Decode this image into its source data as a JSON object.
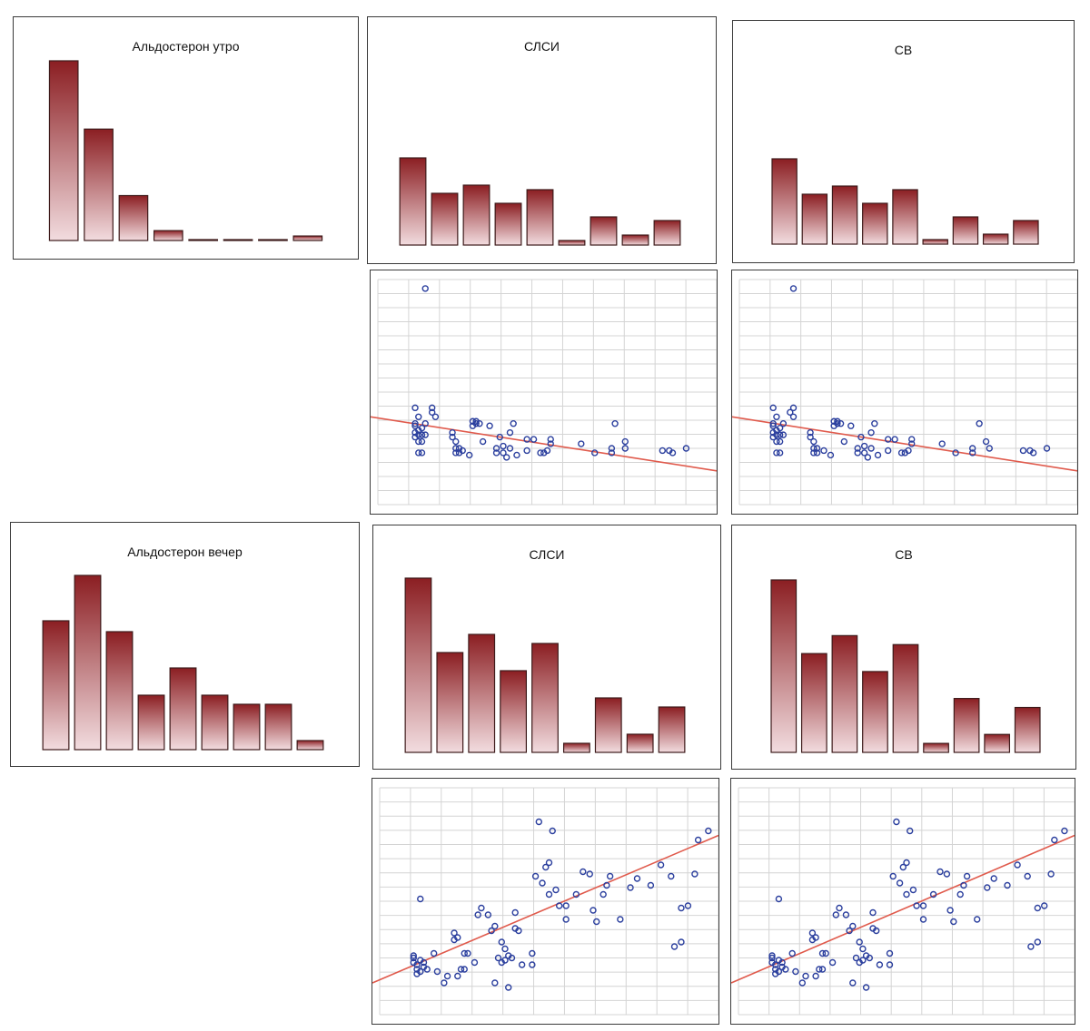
{
  "chart_data": [
    {
      "id": "hist-aldo-morning",
      "type": "bar",
      "title": "Альдостерон утро",
      "values": [
        20,
        12.4,
        5,
        1.1,
        0.1,
        0.1,
        0.1,
        0.5
      ],
      "ylim": [
        0,
        20
      ]
    },
    {
      "id": "hist-slsi-1",
      "type": "bar",
      "title": "СЛСИ",
      "values": [
        9.6,
        5.7,
        6.6,
        4.6,
        6.1,
        0.5,
        3.1,
        1.1,
        2.7
      ],
      "ylim": [
        0,
        9.6
      ]
    },
    {
      "id": "hist-sv-1",
      "type": "bar",
      "title": "СВ",
      "values": [
        9.4,
        5.5,
        6.4,
        4.5,
        6.0,
        0.5,
        3.0,
        1.1,
        2.6
      ],
      "ylim": [
        0,
        9.4
      ]
    },
    {
      "id": "scatter-slsi-1",
      "type": "scatter",
      "xlim": [
        0,
        100
      ],
      "ylim": [
        0,
        100
      ],
      "points": [
        [
          11,
          43
        ],
        [
          11,
          36
        ],
        [
          11,
          35
        ],
        [
          11,
          32
        ],
        [
          11,
          30
        ],
        [
          12,
          33
        ],
        [
          12,
          31
        ],
        [
          12,
          28
        ],
        [
          13,
          31
        ],
        [
          13,
          28
        ],
        [
          14,
          31
        ],
        [
          13,
          34
        ],
        [
          14,
          36
        ],
        [
          16,
          41
        ],
        [
          12,
          23
        ],
        [
          13,
          23
        ],
        [
          14,
          96
        ],
        [
          12,
          39
        ],
        [
          16,
          43
        ],
        [
          17,
          39
        ],
        [
          22,
          32
        ],
        [
          22,
          30
        ],
        [
          23,
          28
        ],
        [
          23,
          25
        ],
        [
          23,
          23
        ],
        [
          24,
          23
        ],
        [
          24,
          25
        ],
        [
          25,
          24
        ],
        [
          27,
          22
        ],
        [
          28,
          35
        ],
        [
          28,
          37
        ],
        [
          29,
          36
        ],
        [
          29,
          37
        ],
        [
          30,
          36
        ],
        [
          31,
          28
        ],
        [
          33,
          35
        ],
        [
          35,
          23
        ],
        [
          35,
          25
        ],
        [
          36,
          30
        ],
        [
          37,
          23
        ],
        [
          37,
          26
        ],
        [
          38,
          21
        ],
        [
          39,
          32
        ],
        [
          39,
          25
        ],
        [
          40,
          36
        ],
        [
          41,
          22
        ],
        [
          44,
          29
        ],
        [
          44,
          24
        ],
        [
          46,
          29
        ],
        [
          48,
          23
        ],
        [
          49,
          23
        ],
        [
          50,
          24
        ],
        [
          51,
          27
        ],
        [
          51,
          29
        ],
        [
          60,
          27
        ],
        [
          64,
          23
        ],
        [
          69,
          23
        ],
        [
          69,
          25
        ],
        [
          70,
          36
        ],
        [
          73,
          28
        ],
        [
          73,
          25
        ],
        [
          84,
          24
        ],
        [
          86,
          24
        ],
        [
          87,
          23
        ],
        [
          91,
          25
        ]
      ],
      "trendline": [
        [
          0,
          39
        ],
        [
          100,
          15
        ]
      ]
    },
    {
      "id": "scatter-sv-1",
      "type": "scatter",
      "xlim": [
        0,
        100
      ],
      "ylim": [
        0,
        100
      ],
      "points": [
        [
          10,
          43
        ],
        [
          10,
          36
        ],
        [
          10,
          35
        ],
        [
          10,
          32
        ],
        [
          10,
          30
        ],
        [
          11,
          33
        ],
        [
          11,
          31
        ],
        [
          11,
          28
        ],
        [
          12,
          31
        ],
        [
          12,
          28
        ],
        [
          13,
          31
        ],
        [
          12,
          34
        ],
        [
          13,
          36
        ],
        [
          15,
          41
        ],
        [
          11,
          23
        ],
        [
          12,
          23
        ],
        [
          16,
          96
        ],
        [
          11,
          39
        ],
        [
          16,
          43
        ],
        [
          16,
          39
        ],
        [
          21,
          32
        ],
        [
          21,
          30
        ],
        [
          22,
          28
        ],
        [
          22,
          25
        ],
        [
          22,
          23
        ],
        [
          23,
          23
        ],
        [
          23,
          25
        ],
        [
          25,
          24
        ],
        [
          27,
          22
        ],
        [
          28,
          35
        ],
        [
          28,
          37
        ],
        [
          29,
          36
        ],
        [
          29,
          37
        ],
        [
          30,
          36
        ],
        [
          31,
          28
        ],
        [
          33,
          35
        ],
        [
          35,
          23
        ],
        [
          35,
          25
        ],
        [
          36,
          30
        ],
        [
          37,
          23
        ],
        [
          37,
          26
        ],
        [
          38,
          21
        ],
        [
          39,
          32
        ],
        [
          39,
          25
        ],
        [
          40,
          36
        ],
        [
          41,
          22
        ],
        [
          44,
          29
        ],
        [
          44,
          24
        ],
        [
          46,
          29
        ],
        [
          48,
          23
        ],
        [
          49,
          23
        ],
        [
          50,
          24
        ],
        [
          51,
          27
        ],
        [
          51,
          29
        ],
        [
          60,
          27
        ],
        [
          64,
          23
        ],
        [
          69,
          23
        ],
        [
          69,
          25
        ],
        [
          71,
          36
        ],
        [
          73,
          28
        ],
        [
          74,
          25
        ],
        [
          84,
          24
        ],
        [
          86,
          24
        ],
        [
          87,
          23
        ],
        [
          91,
          25
        ]
      ],
      "trendline": [
        [
          0,
          39
        ],
        [
          100,
          15
        ]
      ]
    },
    {
      "id": "hist-aldo-evening",
      "type": "bar",
      "title": "Альдостерон вечер",
      "values": [
        7.1,
        9.6,
        6.5,
        3.0,
        4.5,
        3.0,
        2.5,
        2.5,
        0.5
      ],
      "ylim": [
        0,
        9.6
      ]
    },
    {
      "id": "hist-slsi-2",
      "type": "bar",
      "title": "СЛСИ",
      "values": [
        9.6,
        5.5,
        6.5,
        4.5,
        6.0,
        0.5,
        3.0,
        1.0,
        2.5
      ],
      "ylim": [
        0,
        9.6
      ]
    },
    {
      "id": "hist-sv-2",
      "type": "bar",
      "title": "СВ",
      "values": [
        9.6,
        5.5,
        6.5,
        4.5,
        6.0,
        0.5,
        3.0,
        1.0,
        2.5
      ],
      "ylim": [
        0,
        9.6
      ]
    },
    {
      "id": "scatter-slsi-2",
      "type": "scatter",
      "xlim": [
        0,
        100
      ],
      "ylim": [
        0,
        100
      ],
      "points": [
        [
          10,
          25
        ],
        [
          10,
          26
        ],
        [
          10,
          23
        ],
        [
          11,
          22
        ],
        [
          11,
          20
        ],
        [
          11,
          18
        ],
        [
          12,
          19
        ],
        [
          12,
          24
        ],
        [
          12,
          51
        ],
        [
          13,
          21
        ],
        [
          13,
          23
        ],
        [
          14,
          20
        ],
        [
          16,
          27
        ],
        [
          17,
          19
        ],
        [
          19,
          14
        ],
        [
          20,
          17
        ],
        [
          22,
          33
        ],
        [
          22,
          36
        ],
        [
          23,
          34
        ],
        [
          23,
          17
        ],
        [
          24,
          20
        ],
        [
          25,
          20
        ],
        [
          25,
          27
        ],
        [
          26,
          27
        ],
        [
          28,
          23
        ],
        [
          29,
          44
        ],
        [
          30,
          47
        ],
        [
          32,
          44
        ],
        [
          33,
          37
        ],
        [
          34,
          39
        ],
        [
          34,
          14
        ],
        [
          35,
          25
        ],
        [
          36,
          32
        ],
        [
          36,
          23
        ],
        [
          37,
          29
        ],
        [
          37,
          24
        ],
        [
          38,
          12
        ],
        [
          38,
          26
        ],
        [
          39,
          25
        ],
        [
          40,
          38
        ],
        [
          40,
          45
        ],
        [
          41,
          37
        ],
        [
          42,
          22
        ],
        [
          45,
          22
        ],
        [
          45,
          27
        ],
        [
          46,
          61
        ],
        [
          47,
          85
        ],
        [
          48,
          58
        ],
        [
          49,
          65
        ],
        [
          50,
          67
        ],
        [
          50,
          53
        ],
        [
          51,
          81
        ],
        [
          52,
          55
        ],
        [
          53,
          48
        ],
        [
          55,
          42
        ],
        [
          55,
          48
        ],
        [
          58,
          53
        ],
        [
          60,
          63
        ],
        [
          62,
          62
        ],
        [
          63,
          46
        ],
        [
          64,
          41
        ],
        [
          66,
          53
        ],
        [
          67,
          57
        ],
        [
          68,
          61
        ],
        [
          71,
          42
        ],
        [
          74,
          56
        ],
        [
          76,
          60
        ],
        [
          80,
          57
        ],
        [
          83,
          66
        ],
        [
          86,
          61
        ],
        [
          87,
          30
        ],
        [
          89,
          47
        ],
        [
          89,
          32
        ],
        [
          91,
          48
        ],
        [
          93,
          62
        ],
        [
          94,
          77
        ],
        [
          97,
          81
        ]
      ],
      "trendline": [
        [
          0,
          14
        ],
        [
          100,
          79
        ]
      ]
    },
    {
      "id": "scatter-sv-2",
      "type": "scatter",
      "xlim": [
        0,
        100
      ],
      "ylim": [
        0,
        100
      ],
      "points": [
        [
          10,
          25
        ],
        [
          10,
          26
        ],
        [
          10,
          23
        ],
        [
          11,
          22
        ],
        [
          11,
          20
        ],
        [
          11,
          18
        ],
        [
          12,
          19
        ],
        [
          12,
          24
        ],
        [
          12,
          51
        ],
        [
          13,
          21
        ],
        [
          13,
          23
        ],
        [
          14,
          20
        ],
        [
          16,
          27
        ],
        [
          17,
          19
        ],
        [
          19,
          14
        ],
        [
          20,
          17
        ],
        [
          22,
          33
        ],
        [
          22,
          36
        ],
        [
          23,
          34
        ],
        [
          23,
          17
        ],
        [
          24,
          20
        ],
        [
          25,
          20
        ],
        [
          25,
          27
        ],
        [
          26,
          27
        ],
        [
          28,
          23
        ],
        [
          29,
          44
        ],
        [
          30,
          47
        ],
        [
          32,
          44
        ],
        [
          33,
          37
        ],
        [
          34,
          39
        ],
        [
          34,
          14
        ],
        [
          35,
          25
        ],
        [
          36,
          32
        ],
        [
          36,
          23
        ],
        [
          37,
          29
        ],
        [
          37,
          24
        ],
        [
          38,
          12
        ],
        [
          38,
          26
        ],
        [
          39,
          25
        ],
        [
          40,
          38
        ],
        [
          40,
          45
        ],
        [
          41,
          37
        ],
        [
          42,
          22
        ],
        [
          45,
          22
        ],
        [
          45,
          27
        ],
        [
          46,
          61
        ],
        [
          47,
          85
        ],
        [
          48,
          58
        ],
        [
          49,
          65
        ],
        [
          50,
          67
        ],
        [
          50,
          53
        ],
        [
          51,
          81
        ],
        [
          52,
          55
        ],
        [
          53,
          48
        ],
        [
          55,
          42
        ],
        [
          55,
          48
        ],
        [
          58,
          53
        ],
        [
          60,
          63
        ],
        [
          62,
          62
        ],
        [
          63,
          46
        ],
        [
          64,
          41
        ],
        [
          66,
          53
        ],
        [
          67,
          57
        ],
        [
          68,
          61
        ],
        [
          71,
          42
        ],
        [
          74,
          56
        ],
        [
          76,
          60
        ],
        [
          80,
          57
        ],
        [
          83,
          66
        ],
        [
          86,
          61
        ],
        [
          87,
          30
        ],
        [
          89,
          47
        ],
        [
          89,
          32
        ],
        [
          91,
          48
        ],
        [
          93,
          62
        ],
        [
          94,
          77
        ],
        [
          97,
          81
        ]
      ],
      "trendline": [
        [
          0,
          14
        ],
        [
          100,
          79
        ]
      ]
    }
  ],
  "colors": {
    "bar_dark": "#8b1e22",
    "bar_light": "#f2dcdf",
    "bar_stroke": "#3d1a1a",
    "point": "#2b3f9e",
    "trend": "#e05a4c",
    "grid": "#d4d4d4",
    "frame": "#3a3a3a"
  }
}
